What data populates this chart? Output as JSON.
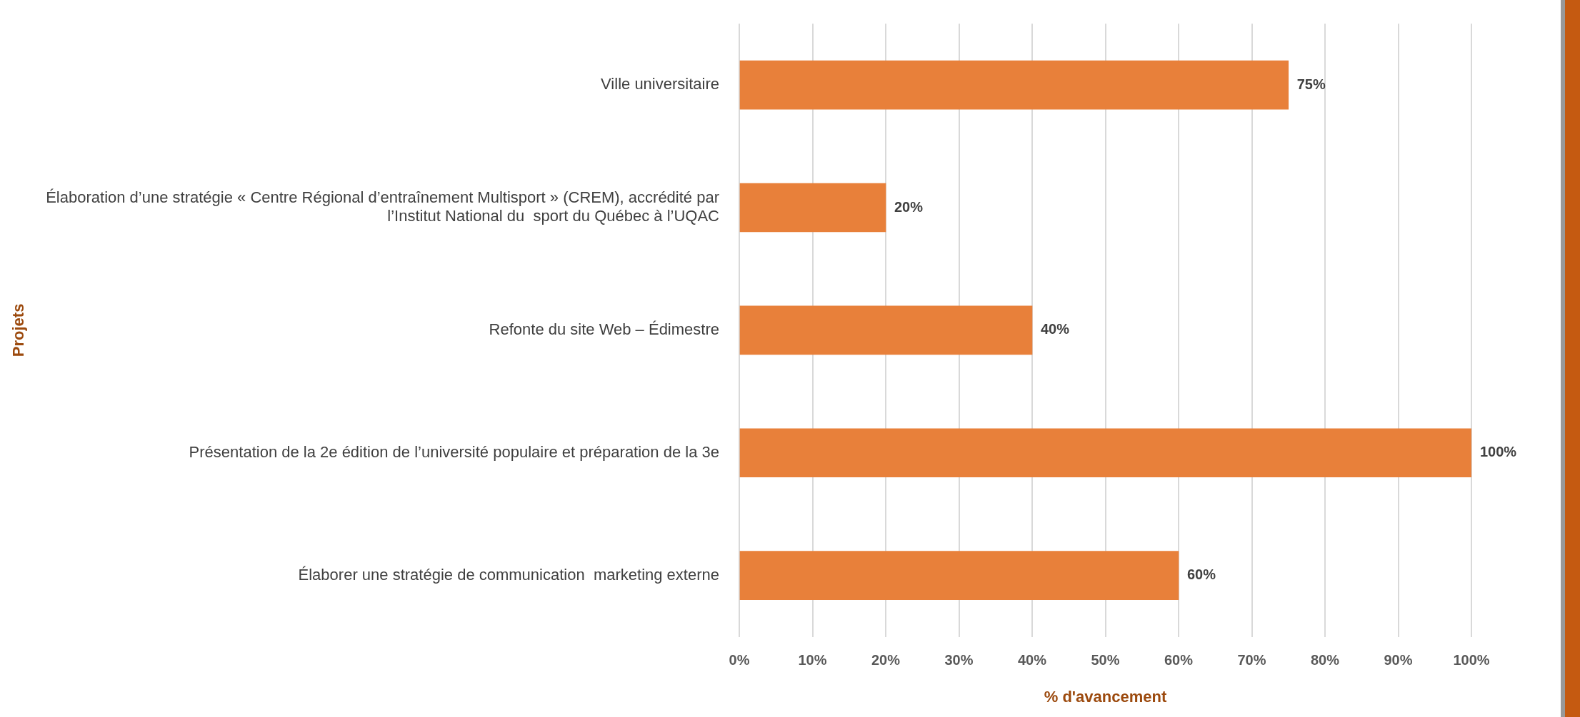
{
  "chart_data": {
    "type": "bar",
    "orientation": "horizontal",
    "xlabel": "% d'avancement",
    "ylabel": "Projets",
    "categories": [
      "Ville universitaire",
      "Élaboration d’une stratégie « Centre Régional d’entraînement Multisport » (CREM), accrédité par l’Institut National du  sport du Québec à l’UQAC",
      "Refonte du site Web – Édimestre",
      "Présentation de la 2e édition de l’université populaire et préparation de la 3e",
      "Élaborer une stratégie de communication  marketing externe"
    ],
    "values": [
      75,
      20,
      40,
      100,
      60
    ],
    "value_labels": [
      "75%",
      "20%",
      "40%",
      "100%",
      "60%"
    ],
    "color": "#e8803a",
    "xlim": [
      0,
      100
    ],
    "xticks": [
      {
        "value": 0,
        "label": "0%"
      },
      {
        "value": 10,
        "label": "10%"
      },
      {
        "value": 20,
        "label": "20%"
      },
      {
        "value": 30,
        "label": "30%"
      },
      {
        "value": 40,
        "label": "40%"
      },
      {
        "value": 50,
        "label": "50%"
      },
      {
        "value": 60,
        "label": "60%"
      },
      {
        "value": 70,
        "label": "70%"
      },
      {
        "value": 80,
        "label": "80%"
      },
      {
        "value": 90,
        "label": "90%"
      },
      {
        "value": 100,
        "label": "100%"
      }
    ],
    "grid": "x",
    "legend": false
  }
}
